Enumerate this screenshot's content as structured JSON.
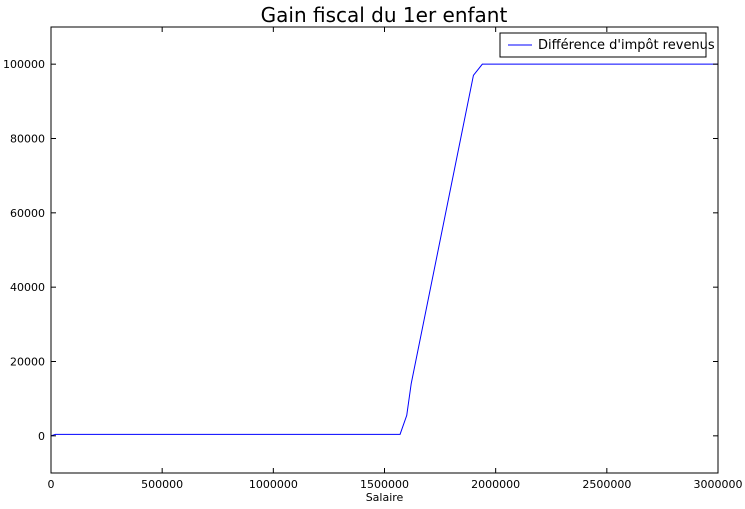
{
  "chart_data": {
    "type": "line",
    "title": "Gain fiscal du 1er enfant",
    "xlabel": "Salaire",
    "ylabel": "",
    "xlim": [
      0,
      3000000
    ],
    "ylim": [
      -10000,
      110000
    ],
    "xticks": [
      0,
      500000,
      1000000,
      1500000,
      2000000,
      2500000,
      3000000
    ],
    "xtick_labels": [
      "0",
      "500000",
      "1000000",
      "1500000",
      "2000000",
      "2500000",
      "3000000"
    ],
    "yticks": [
      0,
      20000,
      40000,
      60000,
      80000,
      100000
    ],
    "ytick_labels": [
      "0",
      "20000",
      "40000",
      "60000",
      "80000",
      "100000"
    ],
    "grid": false,
    "legend_position": "top-right",
    "series": [
      {
        "name": "Différence d'impôt revenus",
        "color": "#0000ff",
        "x": [
          0,
          20000,
          1570000,
          1600000,
          1620000,
          1900000,
          1940000,
          3000000
        ],
        "y": [
          0,
          400,
          400,
          5500,
          14000,
          97000,
          100000,
          100000
        ]
      }
    ]
  }
}
